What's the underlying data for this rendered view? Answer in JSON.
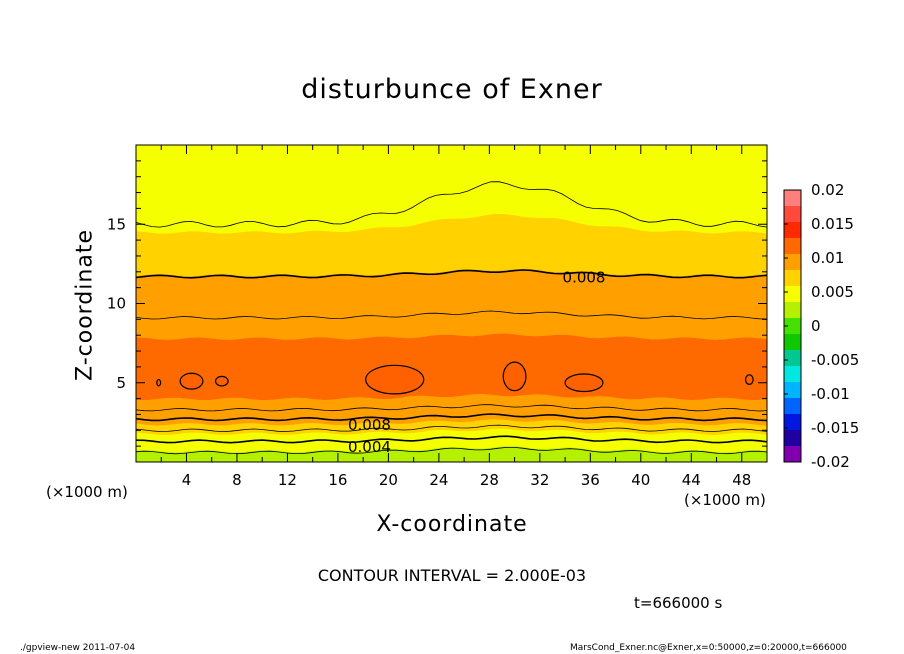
{
  "chart_data": {
    "type": "heatmap",
    "title": "disturbunce of Exner",
    "xlabel": "X-coordinate",
    "ylabel": "Z-coordinate",
    "x_unit_label": "(×1000 m)",
    "xlim": [
      0,
      50
    ],
    "ylim": [
      0,
      20
    ],
    "x_ticks": [
      4,
      8,
      12,
      16,
      20,
      24,
      28,
      32,
      36,
      40,
      44,
      48
    ],
    "y_ticks": [
      5,
      10,
      15
    ],
    "colorbar": {
      "ticks": [
        "0.02",
        "0.015",
        "0.01",
        "0.005",
        "0",
        "-0.005",
        "-0.01",
        "-0.015",
        "-0.02"
      ],
      "tick_values": [
        0.02,
        0.015,
        0.01,
        0.005,
        0,
        -0.005,
        -0.01,
        -0.015,
        -0.02
      ],
      "colors": [
        "#ff7f7f",
        "#ff4a3c",
        "#ff2a00",
        "#ff6a00",
        "#ffa000",
        "#ffd200",
        "#f5ff00",
        "#b5f000",
        "#46e000",
        "#10c800",
        "#00c890",
        "#00e8e0",
        "#00b4ff",
        "#0064ff",
        "#0018e0",
        "#2000a0",
        "#8000b0"
      ]
    },
    "contour_interval": "CONTOUR INTERVAL = 2.000E-03",
    "contour_labels": [
      "0.008",
      "0.008",
      "0.004"
    ],
    "contour_levels": [
      0.004,
      0.006,
      0.008,
      0.01,
      0.012
    ],
    "value_bands": [
      {
        "z": [
          0,
          0.3
        ],
        "value": 0.0015
      },
      {
        "z": [
          0.3,
          0.7
        ],
        "value": 0.003
      },
      {
        "z": [
          0.7,
          1.2
        ],
        "value": 0.004
      },
      {
        "z": [
          1.2,
          1.8
        ],
        "value": 0.0055
      },
      {
        "z": [
          1.8,
          2.4
        ],
        "value": 0.007
      },
      {
        "z": [
          2.4,
          3.0
        ],
        "value": 0.0085
      },
      {
        "z": [
          3.0,
          4.0
        ],
        "value": 0.01
      },
      {
        "z": [
          4.0,
          7.8
        ],
        "value": 0.0115
      },
      {
        "z": [
          7.8,
          9.4
        ],
        "value": 0.0105
      },
      {
        "z": [
          9.4,
          11.8
        ],
        "value": 0.009
      },
      {
        "z": [
          11.8,
          14.5
        ],
        "value": 0.0072
      },
      {
        "z": [
          14.5,
          17.5
        ],
        "value": 0.0058
      },
      {
        "z": [
          17.5,
          20
        ],
        "value": 0.0045
      }
    ],
    "time": "t=666000 s"
  },
  "footer": {
    "left": "./gpview-new   2011-07-04",
    "right": "MarsCond_Exner.nc@Exner,x=0:50000,z=0:20000,t=666000"
  }
}
